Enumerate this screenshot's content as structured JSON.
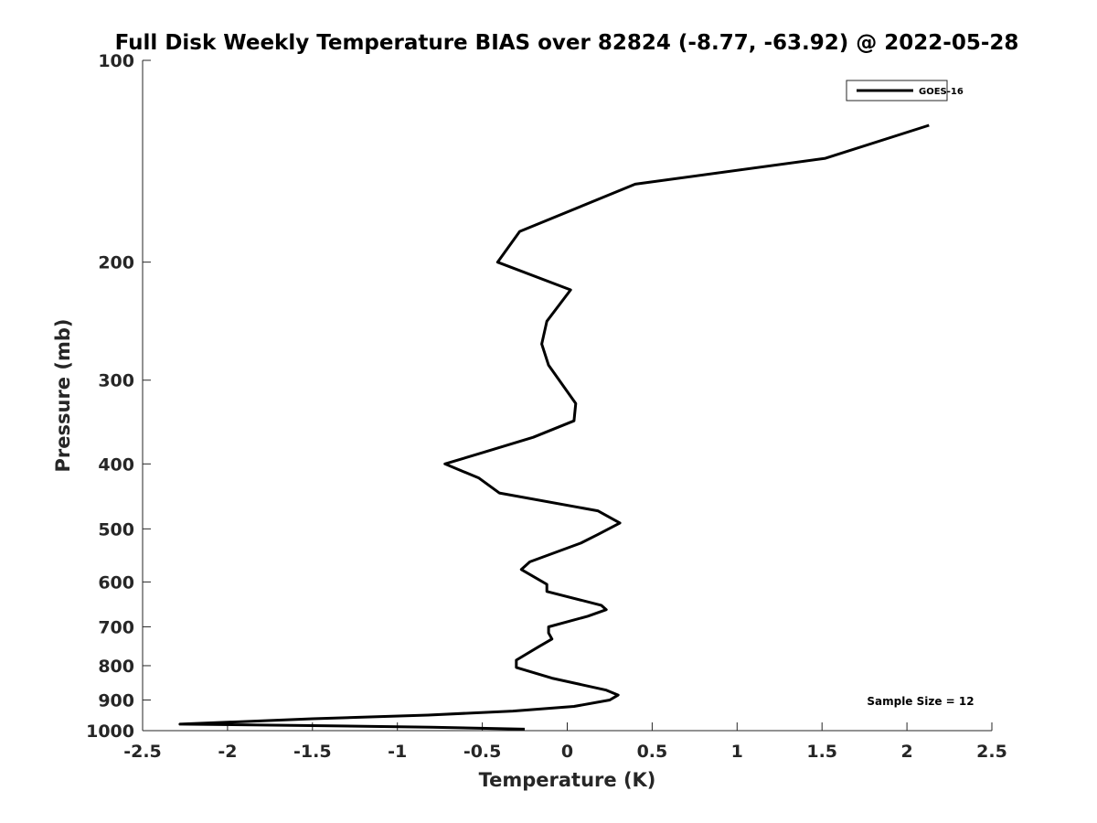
{
  "chart_data": {
    "type": "line",
    "title": "Full Disk Weekly Temperature BIAS over 82824 (-8.77, -63.92) @ 2022-05-28",
    "xlabel": "Temperature (K)",
    "ylabel": "Pressure (mb)",
    "xlim": [
      -2.5,
      2.5
    ],
    "ylim": [
      100,
      1000
    ],
    "yscale": "log",
    "y_reversed": true,
    "x_ticks": [
      -2.5,
      -2,
      -1.5,
      -1,
      -0.5,
      0,
      0.5,
      1,
      1.5,
      2,
      2.5
    ],
    "x_tick_labels": [
      "-2.5",
      "-2",
      "-1.5",
      "-1",
      "-0.5",
      "0",
      "0.5",
      "1",
      "1.5",
      "2",
      "2.5"
    ],
    "y_ticks": [
      100,
      200,
      300,
      400,
      500,
      600,
      700,
      800,
      900,
      1000
    ],
    "y_tick_labels": [
      "100",
      "200",
      "300",
      "400",
      "500",
      "600",
      "700",
      "800",
      "900",
      "1000"
    ],
    "grid": false,
    "legend_position": "top-right",
    "series": [
      {
        "name": "GOES-16",
        "color": "#000000",
        "points": [
          {
            "x": 2.13,
            "p": 125
          },
          {
            "x": 1.52,
            "p": 140
          },
          {
            "x": 0.4,
            "p": 153
          },
          {
            "x": -0.28,
            "p": 180
          },
          {
            "x": -0.41,
            "p": 200
          },
          {
            "x": 0.02,
            "p": 220
          },
          {
            "x": -0.12,
            "p": 245
          },
          {
            "x": -0.15,
            "p": 265
          },
          {
            "x": -0.11,
            "p": 285
          },
          {
            "x": 0.05,
            "p": 325
          },
          {
            "x": 0.04,
            "p": 345
          },
          {
            "x": -0.2,
            "p": 365
          },
          {
            "x": -0.5,
            "p": 385
          },
          {
            "x": -0.72,
            "p": 400
          },
          {
            "x": -0.52,
            "p": 420
          },
          {
            "x": -0.4,
            "p": 442
          },
          {
            "x": 0.18,
            "p": 470
          },
          {
            "x": 0.31,
            "p": 490
          },
          {
            "x": 0.18,
            "p": 510
          },
          {
            "x": 0.08,
            "p": 525
          },
          {
            "x": -0.22,
            "p": 560
          },
          {
            "x": -0.27,
            "p": 575
          },
          {
            "x": -0.12,
            "p": 605
          },
          {
            "x": -0.12,
            "p": 620
          },
          {
            "x": 0.2,
            "p": 650
          },
          {
            "x": 0.23,
            "p": 660
          },
          {
            "x": 0.12,
            "p": 675
          },
          {
            "x": -0.11,
            "p": 700
          },
          {
            "x": -0.11,
            "p": 715
          },
          {
            "x": -0.09,
            "p": 730
          },
          {
            "x": -0.17,
            "p": 750
          },
          {
            "x": -0.3,
            "p": 785
          },
          {
            "x": -0.3,
            "p": 805
          },
          {
            "x": -0.09,
            "p": 835
          },
          {
            "x": 0.23,
            "p": 870
          },
          {
            "x": 0.3,
            "p": 885
          },
          {
            "x": 0.25,
            "p": 900
          },
          {
            "x": 0.04,
            "p": 920
          },
          {
            "x": -0.32,
            "p": 935
          },
          {
            "x": -0.82,
            "p": 948
          },
          {
            "x": -1.5,
            "p": 960
          },
          {
            "x": -2.28,
            "p": 978
          },
          {
            "x": -1.5,
            "p": 983
          },
          {
            "x": -0.8,
            "p": 988
          },
          {
            "x": -0.25,
            "p": 995
          }
        ]
      }
    ],
    "annotation": "Sample Size = 12"
  }
}
